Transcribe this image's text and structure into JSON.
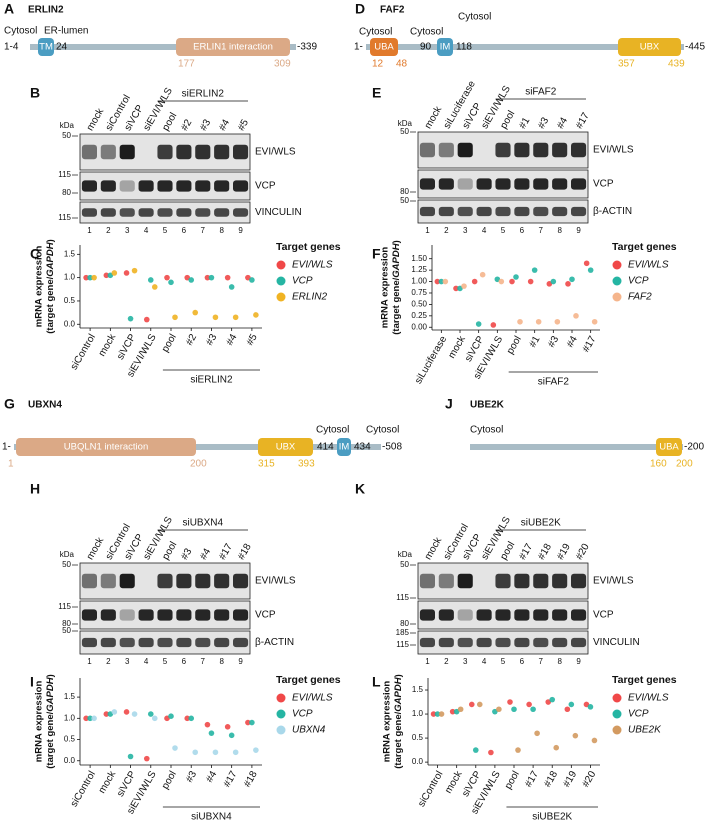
{
  "diagrams": [
    {
      "letter": "A",
      "title": "ERLIN2",
      "texts": [
        "Cytosol",
        "1-4",
        "ER-lumen",
        "24",
        "-339",
        "177",
        "309"
      ],
      "domains": [
        "TM",
        "ERLIN1 interaction"
      ],
      "domain_colors": [
        "#4b9dc2",
        "#dba986"
      ]
    },
    {
      "letter": "D",
      "title": "FAF2",
      "texts": [
        "Cytosol",
        "1-",
        "Cytosol",
        "90",
        "Cytosol",
        "118",
        "-445",
        "12",
        "48",
        "357",
        "439"
      ],
      "domains": [
        "UBA",
        "IM",
        "UBX"
      ],
      "domain_colors": [
        "#e17a2c",
        "#4b9dc2",
        "#e8b324"
      ]
    },
    {
      "letter": "G",
      "title": "UBXN4",
      "texts": [
        "1-",
        "1",
        "200",
        "315",
        "393",
        "Cytosol",
        "414",
        "Cytosol",
        "434",
        "-508"
      ],
      "domains": [
        "UBQLN1 interaction",
        "UBX",
        "IM"
      ],
      "domain_colors": [
        "#dba986",
        "#e8b324",
        "#4b9dc2"
      ]
    },
    {
      "letter": "J",
      "title": "UBE2K",
      "texts": [
        "Cytosol",
        "-200",
        "160",
        "200"
      ],
      "domains": [
        "UBA"
      ],
      "domain_colors": [
        "#e8b324"
      ]
    }
  ],
  "blots": [
    {
      "letter": "B",
      "kda": "kDa",
      "lanes": [
        "mock",
        "siControl",
        "siVCP",
        "siEVI/WLS",
        "pool",
        "#2",
        "#3",
        "#4",
        "#5"
      ],
      "group": "siERLIN2",
      "markers": [
        "50",
        "115",
        "80",
        "115"
      ],
      "proteins": [
        "EVI/WLS",
        "VCP",
        "VINCULIN"
      ],
      "lane_numbers": [
        "1",
        "2",
        "3",
        "4",
        "5",
        "6",
        "7",
        "8",
        "9"
      ]
    },
    {
      "letter": "E",
      "kda": "kDa",
      "lanes": [
        "mock",
        "siLuciferase",
        "siVCP",
        "siEVI/WLS",
        "pool",
        "#1",
        "#3",
        "#4",
        "#17"
      ],
      "group": "siFAF2",
      "markers": [
        "50",
        "80",
        "50"
      ],
      "proteins": [
        "EVI/WLS",
        "VCP",
        "β-ACTIN"
      ],
      "lane_numbers": [
        "1",
        "2",
        "3",
        "4",
        "5",
        "6",
        "7",
        "8",
        "9"
      ]
    },
    {
      "letter": "H",
      "kda": "kDa",
      "lanes": [
        "mock",
        "siControl",
        "siVCP",
        "siEVI/WLS",
        "pool",
        "#3",
        "#4",
        "#17",
        "#18"
      ],
      "group": "siUBXN4",
      "markers": [
        "50",
        "115",
        "80",
        "50"
      ],
      "proteins": [
        "EVI/WLS",
        "VCP",
        "β-ACTIN"
      ],
      "lane_numbers": [
        "1",
        "2",
        "3",
        "4",
        "5",
        "6",
        "7",
        "8",
        "9"
      ]
    },
    {
      "letter": "K",
      "kda": "kDa",
      "lanes": [
        "mock",
        "siControl",
        "siVCP",
        "siEVI/WLS",
        "pool",
        "#17",
        "#18",
        "#19",
        "#20"
      ],
      "group": "siUBE2K",
      "markers": [
        "50",
        "115",
        "80",
        "185",
        "115"
      ],
      "proteins": [
        "EVI/WLS",
        "VCP",
        "VINCULIN"
      ],
      "lane_numbers": [
        "1",
        "2",
        "3",
        "4",
        "5",
        "6",
        "7",
        "8",
        "9"
      ]
    }
  ],
  "chart_data": [
    {
      "type": "dot",
      "letter": "C",
      "ylabel": "mRNA expression",
      "ylabel_sub": [
        "(target gene/",
        "GAPDH",
        ")"
      ],
      "categories": [
        "siControl",
        "mock",
        "siVCP",
        "siEVI/WLS",
        "pool",
        "#2",
        "#3",
        "#4",
        "#5"
      ],
      "group": "siERLIN2",
      "legend_title": "Target genes",
      "series": [
        {
          "name": "EVI/WLS",
          "color": "#f04848",
          "values": [
            1,
            1.05,
            1.1,
            0.1,
            1.0,
            1.0,
            1.0,
            1.0,
            1.0
          ]
        },
        {
          "name": "VCP",
          "color": "#25b5a3",
          "values": [
            1,
            1.05,
            0.12,
            0.95,
            0.9,
            0.95,
            1.0,
            0.8,
            0.95
          ]
        },
        {
          "name": "ERLIN2",
          "color": "#f0b323",
          "values": [
            1,
            1.1,
            1.15,
            0.8,
            0.15,
            0.25,
            0.15,
            0.15,
            0.2
          ]
        }
      ],
      "ylim": [
        -0.08,
        1.7
      ],
      "yticks": [
        {
          "value": 0,
          "label": "0.0"
        },
        0.5,
        {
          "value": 1,
          "label": "1.0"
        },
        1.5
      ]
    },
    {
      "type": "dot",
      "letter": "F",
      "ylabel": "mRNA expression",
      "ylabel_sub": [
        "(target gene/",
        "GAPDH",
        ")"
      ],
      "categories": [
        "siLuciferase",
        "mock",
        "siVCP",
        "siEVI/WLS",
        "pool",
        "#1",
        "#3",
        "#4",
        "#17"
      ],
      "group": "siFAF2",
      "legend_title": "Target genes",
      "series": [
        {
          "name": "EVI/WLS",
          "color": "#f04848",
          "values": [
            1,
            0.85,
            1.0,
            0.05,
            1.0,
            1.0,
            0.95,
            0.95,
            1.4
          ]
        },
        {
          "name": "VCP",
          "color": "#25b5a3",
          "values": [
            1,
            0.85,
            0.07,
            1.05,
            1.1,
            1.25,
            1.0,
            1.05,
            1.25
          ]
        },
        {
          "name": "FAF2",
          "color": "#f5b58c",
          "values": [
            1,
            0.9,
            1.15,
            1.0,
            0.12,
            0.12,
            0.12,
            0.25,
            0.12
          ]
        }
      ],
      "ylim": [
        -0.06,
        1.8
      ],
      "yticks": [
        {
          "value": 0,
          "label": "0.00"
        },
        0.25,
        {
          "value": 0.5,
          "label": "0.50"
        },
        0.75,
        {
          "value": 1,
          "label": "1.00"
        },
        1.25,
        {
          "value": 1.5,
          "label": "1.50"
        }
      ]
    },
    {
      "type": "dot",
      "letter": "I",
      "ylabel": "mRNA expression",
      "ylabel_sub": [
        "(target gene/",
        "GAPDH",
        ")"
      ],
      "categories": [
        "siControl",
        "mock",
        "siVCP",
        "siEVI/WLS",
        "pool",
        "#3",
        "#4",
        "#17",
        "#18"
      ],
      "group": "siUBXN4",
      "legend_title": "Target genes",
      "series": [
        {
          "name": "EVI/WLS",
          "color": "#f04848",
          "values": [
            1,
            1.1,
            1.15,
            0.05,
            1.0,
            1.0,
            0.85,
            0.8,
            0.9
          ]
        },
        {
          "name": "VCP",
          "color": "#25b5a3",
          "values": [
            1,
            1.1,
            0.1,
            1.1,
            1.05,
            1.0,
            0.65,
            0.6,
            0.9
          ]
        },
        {
          "name": "UBXN4",
          "color": "#a9d8ea",
          "values": [
            1,
            1.15,
            1.1,
            1.0,
            0.3,
            0.2,
            0.2,
            0.2,
            0.25
          ]
        }
      ],
      "ylim": [
        -0.1,
        1.95
      ],
      "yticks": [
        {
          "value": 0,
          "label": "0.0"
        },
        0.5,
        {
          "value": 1,
          "label": "1.0"
        },
        1.5
      ]
    },
    {
      "type": "dot",
      "letter": "L",
      "ylabel": "mRNA expression",
      "ylabel_sub": [
        "(target gene/",
        "GAPDH",
        ")"
      ],
      "categories": [
        "siControl",
        "mock",
        "siVCP",
        "siEVI/WLS",
        "pool",
        "#17",
        "#18",
        "#19",
        "#20"
      ],
      "group": "siUBE2K",
      "legend_title": "Target genes",
      "series": [
        {
          "name": "EVI/WLS",
          "color": "#f04848",
          "values": [
            1,
            1.05,
            1.2,
            0.2,
            1.25,
            1.2,
            1.25,
            1.1,
            1.2
          ]
        },
        {
          "name": "VCP",
          "color": "#25b5a3",
          "values": [
            1,
            1.05,
            0.25,
            1.05,
            1.1,
            1.1,
            1.3,
            1.2,
            1.15
          ]
        },
        {
          "name": "UBE2K",
          "color": "#d39a60",
          "values": [
            1,
            1.1,
            1.2,
            1.1,
            0.25,
            0.6,
            0.3,
            0.55,
            0.45
          ]
        }
      ],
      "ylim": [
        -0.06,
        1.75
      ],
      "yticks": [
        {
          "value": 0,
          "label": "0.0"
        },
        0.5,
        {
          "value": 1,
          "label": "1.0"
        },
        1.5
      ]
    }
  ]
}
